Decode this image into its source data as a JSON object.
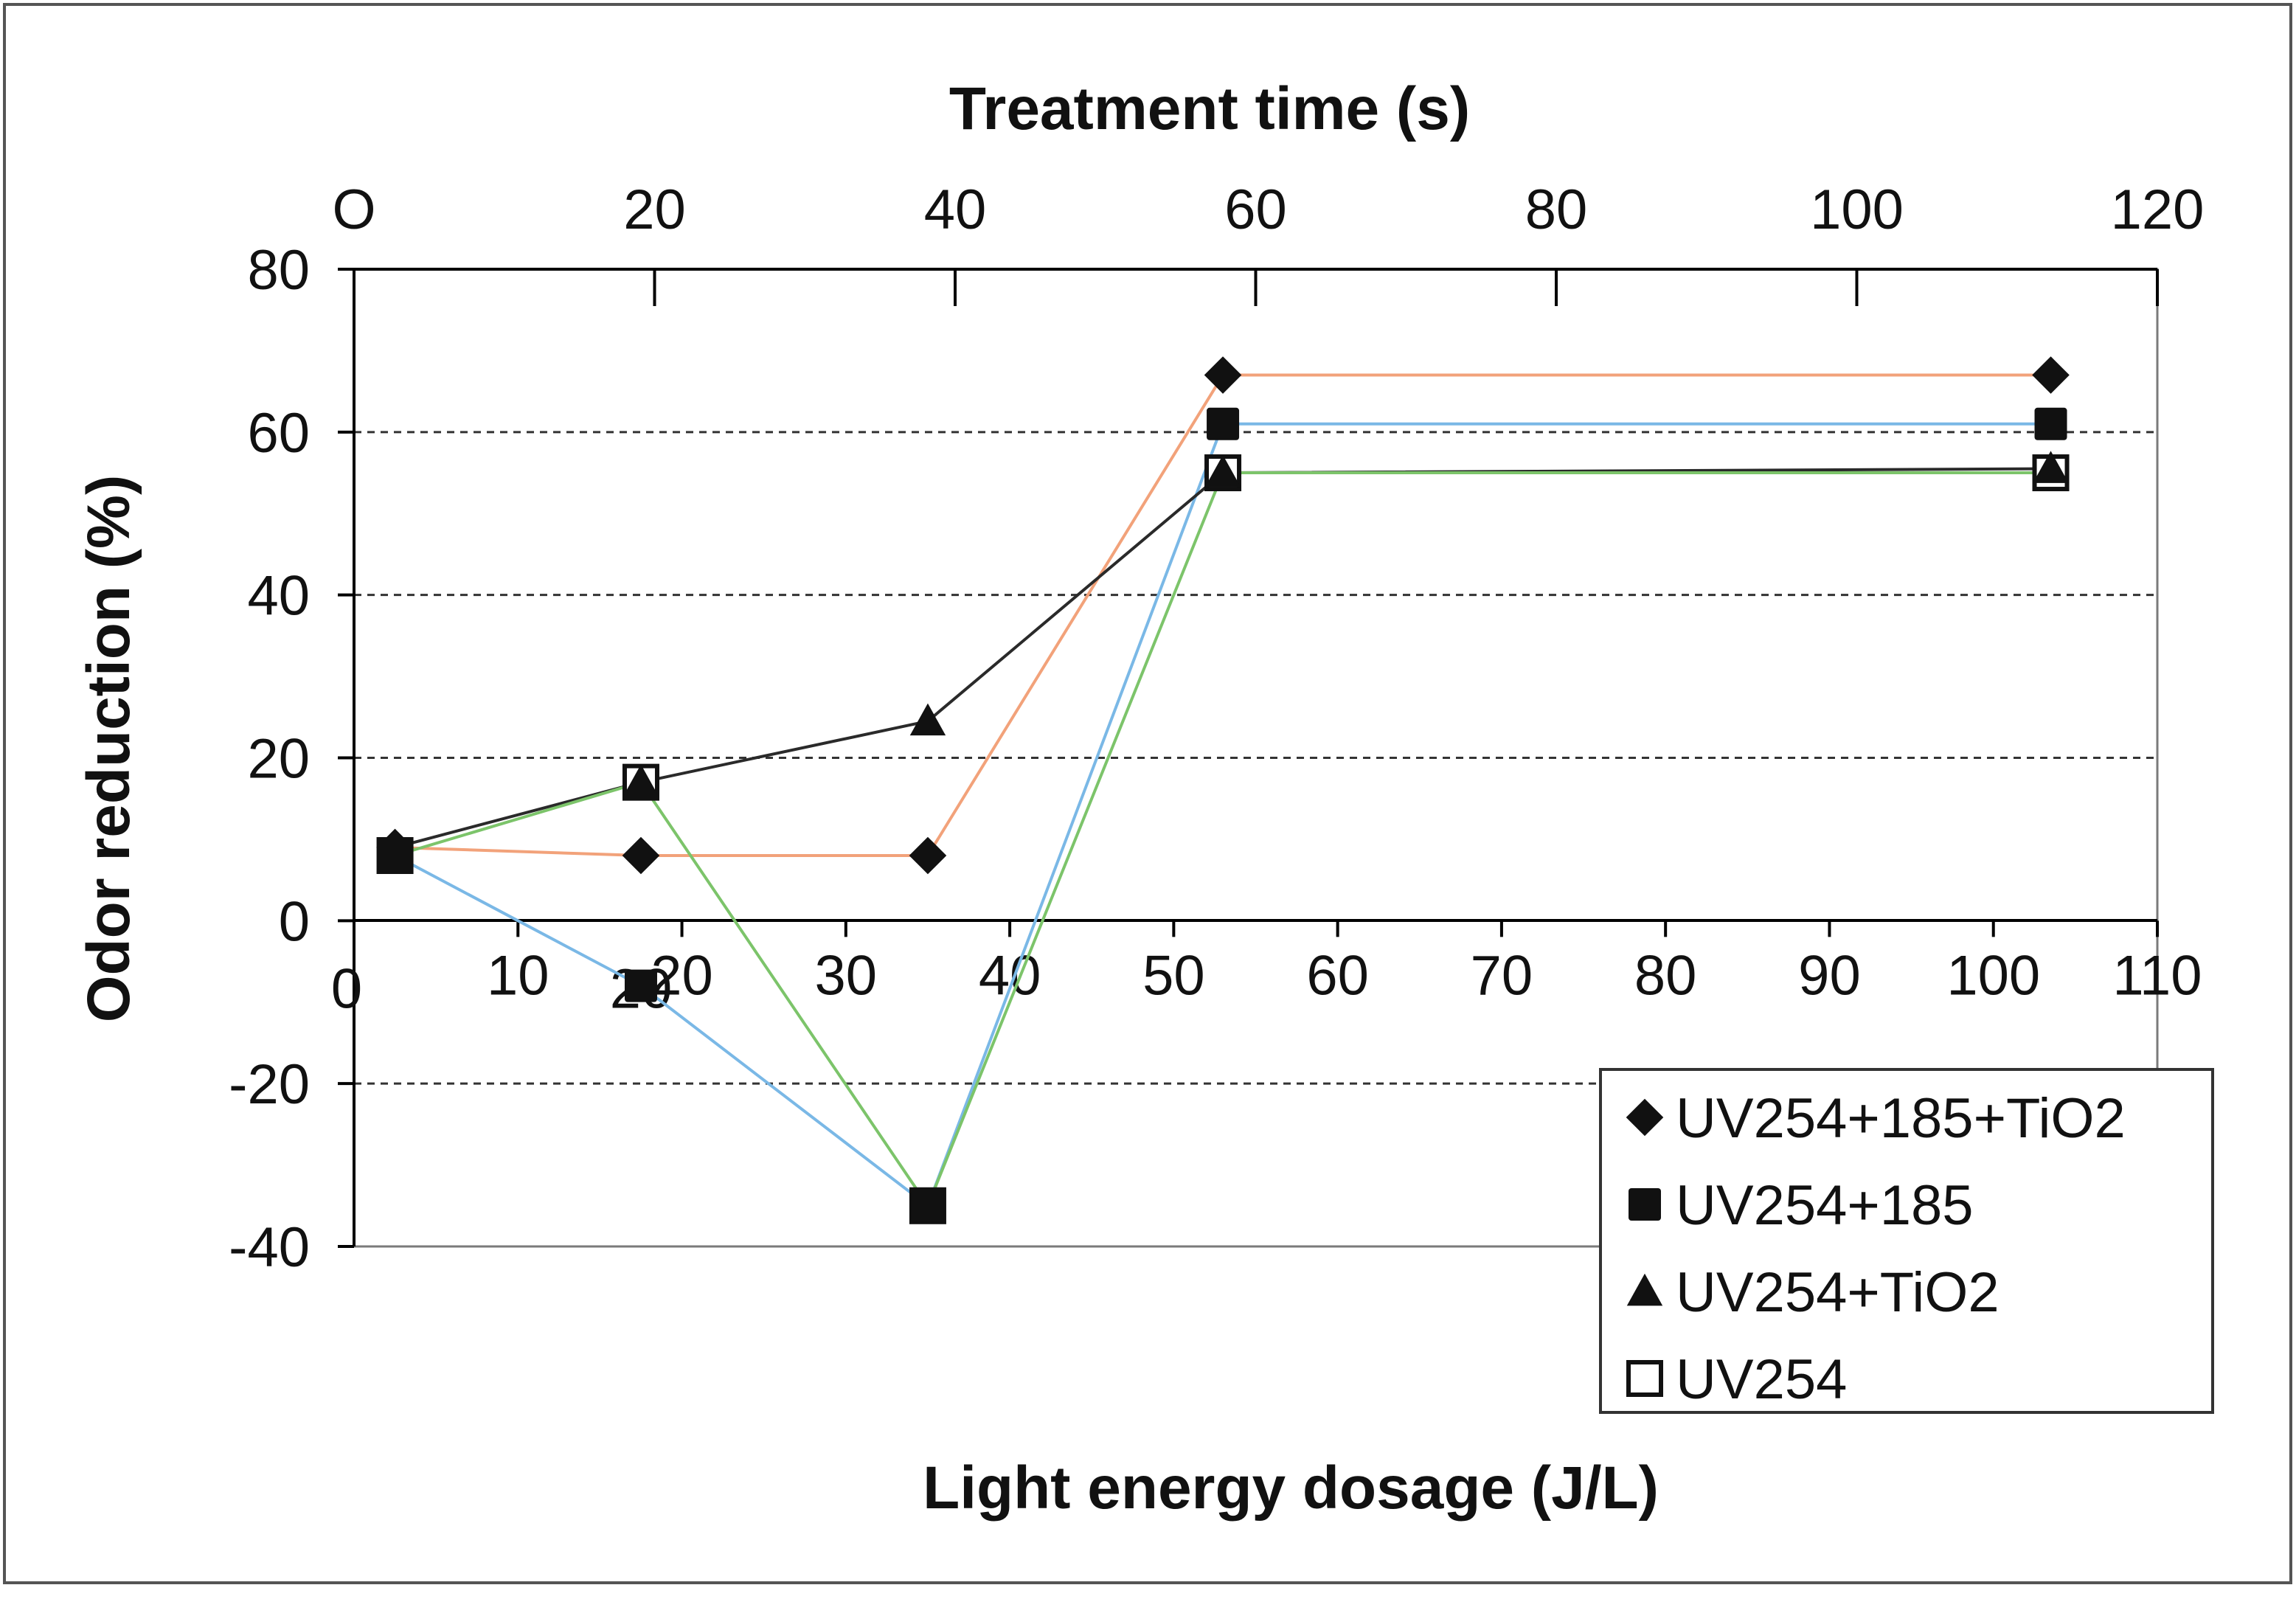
{
  "chart_data": {
    "type": "line",
    "ylabel": "Odor reduction (%)",
    "xlabel": "Light energy dosage (J/L)",
    "x2label": "Treatment time (s)",
    "ylim": [
      -40,
      80
    ],
    "yticks": [
      80,
      60,
      40,
      20,
      0,
      -20,
      -40
    ],
    "xlim": [
      0,
      110
    ],
    "xticks": [
      10,
      20,
      30,
      40,
      50,
      60,
      70,
      80,
      90,
      100,
      110
    ],
    "x_origin_label": "0",
    "x2lim": [
      0,
      120
    ],
    "x2ticks": [
      "O",
      "20",
      "40",
      "60",
      "80",
      "100",
      "120"
    ],
    "x2tick_values": [
      0,
      20,
      40,
      60,
      80,
      100,
      120
    ],
    "overlap_label": "20",
    "grid": "horizontal dashed at 60, 40, 20, -20",
    "legend_position": "bottom-right",
    "series": [
      {
        "name": "UV254+185+TiO2",
        "marker": "diamond",
        "line_color": "#f2a27a",
        "x": [
          2.5,
          17.5,
          35,
          53,
          103.5
        ],
        "values": [
          9,
          8,
          8,
          67,
          67
        ]
      },
      {
        "name": "UV254+185",
        "marker": "filled-square",
        "line_color": "#7ab8e6",
        "x": [
          2.5,
          17.5,
          35,
          53,
          103.5
        ],
        "values": [
          8,
          -8,
          -35,
          61,
          61
        ]
      },
      {
        "name": "UV254+TiO2",
        "marker": "triangle",
        "line_color": "#2a2a2a",
        "x": [
          2.5,
          17.5,
          35,
          53,
          103.5
        ],
        "values": [
          9,
          17,
          24.5,
          55,
          55.5
        ]
      },
      {
        "name": "UV254",
        "marker": "open-square",
        "line_color": "#7cc46a",
        "x": [
          2.5,
          17.5,
          35,
          53,
          103.5
        ],
        "values": [
          8,
          17,
          -35,
          55,
          55
        ]
      }
    ]
  }
}
